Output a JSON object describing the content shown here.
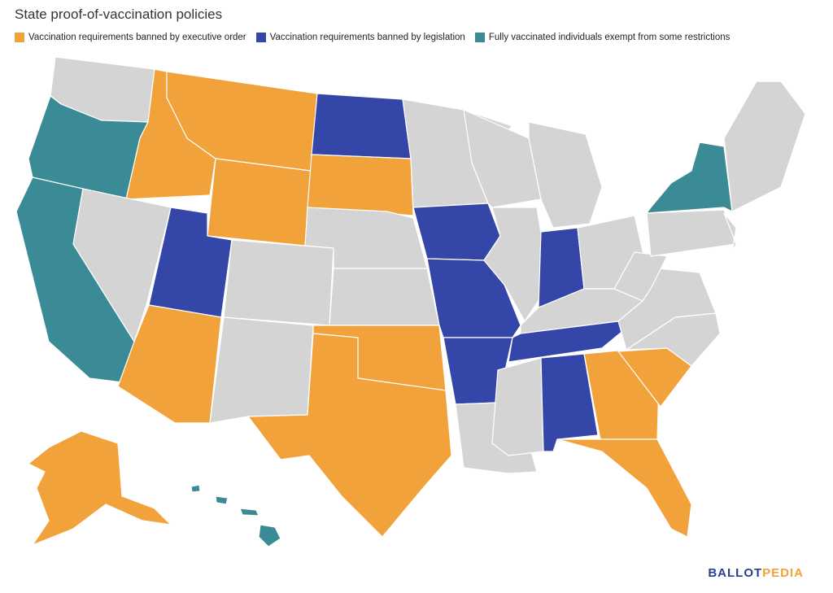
{
  "title": "State proof-of-vaccination policies",
  "legend": {
    "items": [
      {
        "label": "Vaccination requirements banned by executive order",
        "color": "#f2a23a"
      },
      {
        "label": "Vaccination requirements banned by legislation",
        "color": "#3447a8"
      },
      {
        "label": "Fully vaccinated individuals exempt from some restrictions",
        "color": "#3a8b95"
      }
    ]
  },
  "logo": {
    "first": "BALLOT",
    "second": "PEDIA"
  }
}
